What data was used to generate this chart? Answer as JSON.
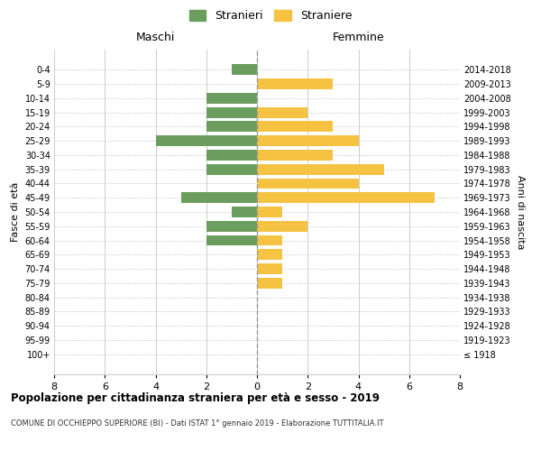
{
  "age_groups": [
    "0-4",
    "5-9",
    "10-14",
    "15-19",
    "20-24",
    "25-29",
    "30-34",
    "35-39",
    "40-44",
    "45-49",
    "50-54",
    "55-59",
    "60-64",
    "65-69",
    "70-74",
    "75-79",
    "80-84",
    "85-89",
    "90-94",
    "95-99",
    "100+"
  ],
  "birth_years": [
    "2014-2018",
    "2009-2013",
    "2004-2008",
    "1999-2003",
    "1994-1998",
    "1989-1993",
    "1984-1988",
    "1979-1983",
    "1974-1978",
    "1969-1973",
    "1964-1968",
    "1959-1963",
    "1954-1958",
    "1949-1953",
    "1944-1948",
    "1939-1943",
    "1934-1938",
    "1929-1933",
    "1924-1928",
    "1919-1923",
    "≤ 1918"
  ],
  "maschi": [
    1,
    0,
    2,
    2,
    2,
    4,
    2,
    2,
    0,
    3,
    1,
    2,
    2,
    0,
    0,
    0,
    0,
    0,
    0,
    0,
    0
  ],
  "femmine": [
    0,
    3,
    0,
    2,
    3,
    4,
    3,
    5,
    4,
    7,
    1,
    2,
    1,
    1,
    1,
    1,
    0,
    0,
    0,
    0,
    0
  ],
  "color_maschi": "#6b9e5e",
  "color_femmine": "#f5c242",
  "background_color": "#ffffff",
  "grid_color": "#cccccc",
  "title": "Popolazione per cittadinanza straniera per età e sesso - 2019",
  "subtitle": "COMUNE DI OCCHIEPPO SUPERIORE (BI) - Dati ISTAT 1° gennaio 2019 - Elaborazione TUTTITALIA.IT",
  "xlabel_left": "Maschi",
  "xlabel_right": "Femmine",
  "ylabel_left": "Fasce di età",
  "ylabel_right": "Anni di nascita",
  "legend_maschi": "Stranieri",
  "legend_femmine": "Straniere",
  "xlim": 8
}
